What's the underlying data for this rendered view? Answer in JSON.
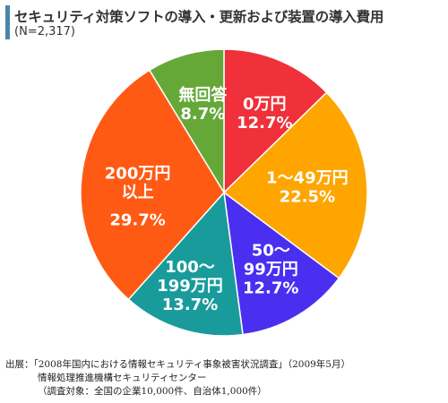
{
  "header": {
    "title": "セキュリティ対策ソフトの導入・更新および装置の導入費用",
    "subtitle": "(N=2,317)"
  },
  "chart_data": {
    "type": "pie",
    "title": "セキュリティ対策ソフトの導入・更新および装置の導入費用",
    "subtitle": "(N=2,317)",
    "slices": [
      {
        "label": [
          "0万円"
        ],
        "value": 12.7,
        "value_label": "12.7%",
        "color": "#f0303a"
      },
      {
        "label": [
          "1〜49万円"
        ],
        "value": 22.5,
        "value_label": "22.5%",
        "color": "#ffa500"
      },
      {
        "label": [
          "50〜",
          "99万円"
        ],
        "value": 12.7,
        "value_label": "12.7%",
        "color": "#4a2ff0"
      },
      {
        "label": [
          "100〜",
          "199万円"
        ],
        "value": 13.7,
        "value_label": "13.7%",
        "color": "#1a9b9b"
      },
      {
        "label": [
          "200万円",
          "以上"
        ],
        "value": 29.7,
        "value_label": "29.7%",
        "color": "#ff5a14"
      },
      {
        "label": [
          "無回答"
        ],
        "value": 8.7,
        "value_label": "8.7%",
        "color": "#65a838"
      }
    ]
  },
  "source": {
    "line1": "出展：「2008年国内における情報セキュリティ事象被害状況調査」（2009年5月）",
    "line2": "情報処理推進機構セキュリティセンター",
    "line3": "（調査対象：全国の企業10,000件、自治体1,000件）"
  }
}
